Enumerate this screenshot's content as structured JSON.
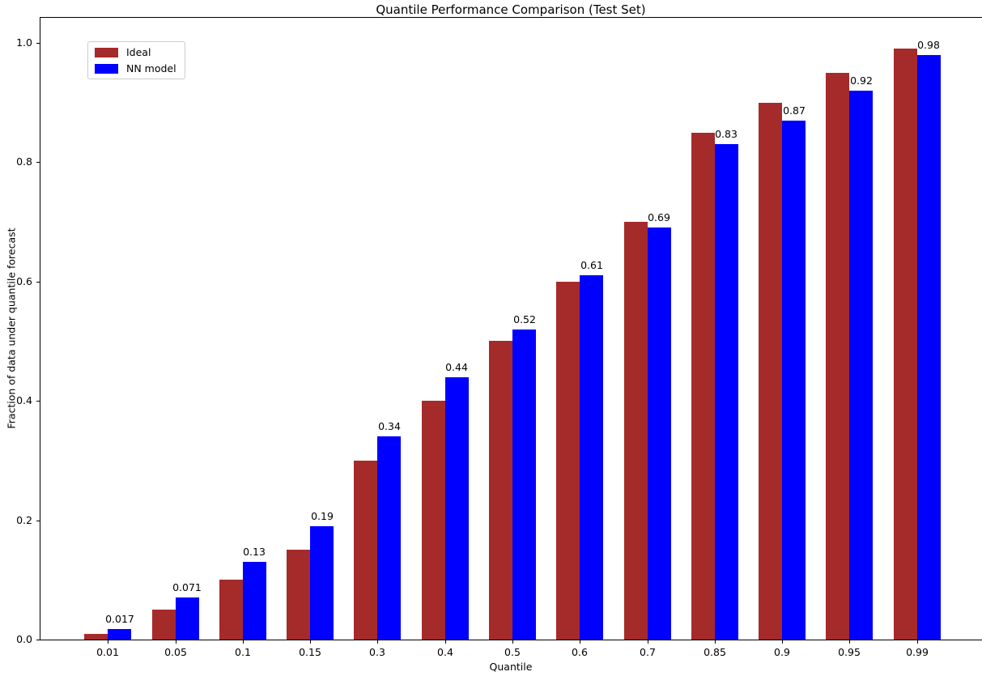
{
  "chart_data": {
    "type": "bar",
    "title": "Quantile Performance Comparison (Test Set)",
    "xlabel": "Quantile",
    "ylabel": "Fraction of data under quantile forecast",
    "categories": [
      "0.01",
      "0.05",
      "0.1",
      "0.15",
      "0.3",
      "0.4",
      "0.5",
      "0.6",
      "0.7",
      "0.85",
      "0.9",
      "0.95",
      "0.99"
    ],
    "series": [
      {
        "name": "Ideal",
        "color": "#a52a2a",
        "values": [
          0.01,
          0.05,
          0.1,
          0.15,
          0.3,
          0.4,
          0.5,
          0.6,
          0.7,
          0.85,
          0.9,
          0.95,
          0.99
        ]
      },
      {
        "name": "NN model",
        "color": "#0000ff",
        "values": [
          0.017,
          0.071,
          0.13,
          0.19,
          0.34,
          0.44,
          0.52,
          0.61,
          0.69,
          0.83,
          0.87,
          0.92,
          0.98
        ],
        "value_labels": [
          "0.017",
          "0.071",
          "0.13",
          "0.19",
          "0.34",
          "0.44",
          "0.52",
          "0.61",
          "0.69",
          "0.83",
          "0.87",
          "0.92",
          "0.98"
        ]
      }
    ],
    "value_labels_on_series": "NN model",
    "y_ticks": [
      "0.0",
      "0.2",
      "0.4",
      "0.6",
      "0.8",
      "1.0"
    ],
    "ylim": [
      0.0,
      1.042
    ],
    "grid": false,
    "legend_position": "upper left"
  }
}
